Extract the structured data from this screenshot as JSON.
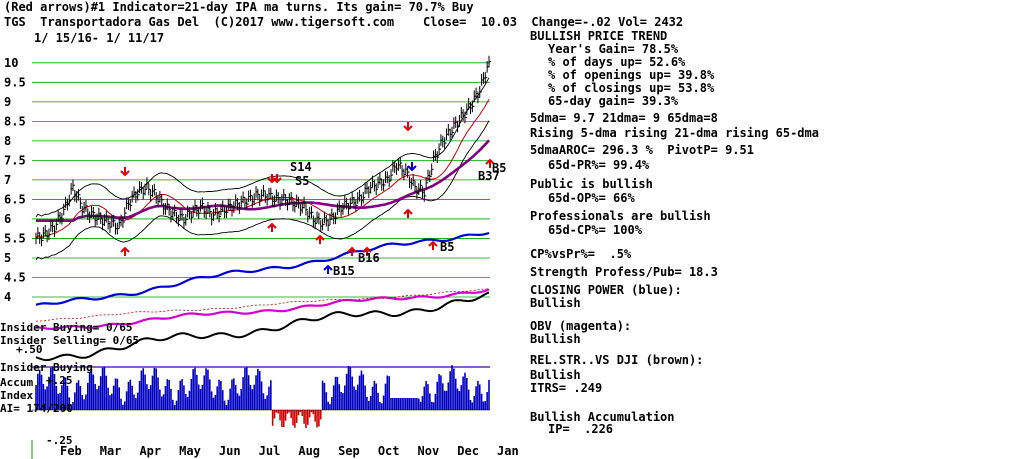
{
  "header": {
    "line1": "(Red arrows)#1 Indicator=21-day IPA ma turns. Its gain= 70.7% Buy",
    "line2": "TGS  Transportadora Gas Del  (C)2017 www.tigersoft.com    Close=  10.03  Change=-.02 Vol= 2432",
    "line3": "1/ 15/16- 1/ 11/17"
  },
  "side_panel": {
    "trend_title": "BULLISH PRICE TREND",
    "years_gain": "Year's Gain= 78.5%",
    "days_up": "% of days up= 52.6%",
    "openings_up": "% of openings up= 39.8%",
    "closings_up": "% of closings up= 53.8%",
    "gain_65": "65-day gain= 39.3%",
    "dma": "5dma= 9.7 21dma= 9 65dma=8",
    "rising": "Rising 5-dma rising 21-dma rising 65-dma",
    "aroc": "5dmaAROC= 296.3 %  PivotP= 9.51",
    "pr": "65d-PR%= 99.4%",
    "public": "Public is bullish",
    "op": "65d-OP%= 66%",
    "professionals": "Professionals are bullish",
    "cp": "65d-CP%= 100%",
    "cpvspr": "CP%vsPr%=  .5%",
    "strength": "Strength Profess/Pub= 18.3",
    "closing_power": "CLOSING POWER (blue):",
    "cp_bullish": "Bullish",
    "obv": "OBV (magenta):",
    "obv_bullish": "Bullish",
    "relstr": "REL.STR..VS DJI (brown):",
    "relstr_bullish": "Bullish",
    "itrs": "ITRS= .249",
    "accum": "Bullish Accumulation",
    "ip": "IP=  .226"
  },
  "left_labels": {
    "insider_buying": "Insider Buying= 0/65",
    "insider_selling": "Insider Selling= 0/65",
    "insider_buying2": "Insider Buying",
    "plus50": "+.50",
    "accum": "Accum",
    "plus25": "+.25",
    "index": "Index",
    "ai": "AI= 174/200",
    "minus25": "-.25"
  },
  "chart_data": {
    "type": "line",
    "title": "TGS Transportadora Gas Del",
    "x_tick_labels": [
      "Feb",
      "Mar",
      "Apr",
      "May",
      "Jun",
      "Jul",
      "Aug",
      "Sep",
      "Oct",
      "Nov",
      "Dec",
      "Jan"
    ],
    "y_tick_labels": [
      "10",
      "9.5",
      "9",
      "8.5",
      "8",
      "7.5",
      "7",
      "6.5",
      "6",
      "5.5",
      "5",
      "4.5",
      "4"
    ],
    "ylim": [
      4,
      10.2
    ],
    "price_close": [
      5.5,
      5.6,
      5.8,
      6.2,
      6.8,
      6.3,
      6.1,
      6.0,
      5.9,
      5.8,
      6.4,
      6.7,
      6.8,
      6.6,
      6.3,
      6.1,
      6.0,
      6.2,
      6.3,
      6.1,
      6.2,
      6.3,
      6.4,
      6.5,
      6.6,
      6.6,
      6.5,
      6.5,
      6.4,
      6.3,
      6.0,
      5.9,
      6.0,
      6.3,
      6.4,
      6.5,
      6.8,
      6.9,
      7.0,
      7.4,
      7.2,
      6.8,
      6.7,
      7.5,
      8.0,
      8.3,
      8.6,
      8.9,
      9.3,
      10.03
    ],
    "annotations": [
      "S14",
      "S5",
      "B15",
      "B16",
      "B5",
      "B37",
      "B5"
    ],
    "series_descriptions": [
      "Price",
      "65-dma (purple)",
      "21-dma bands",
      "Closing Power (blue)",
      "OBV (magenta)",
      "Rel.Str vs DJI (black)",
      "Accumulation Index (bars)"
    ]
  }
}
